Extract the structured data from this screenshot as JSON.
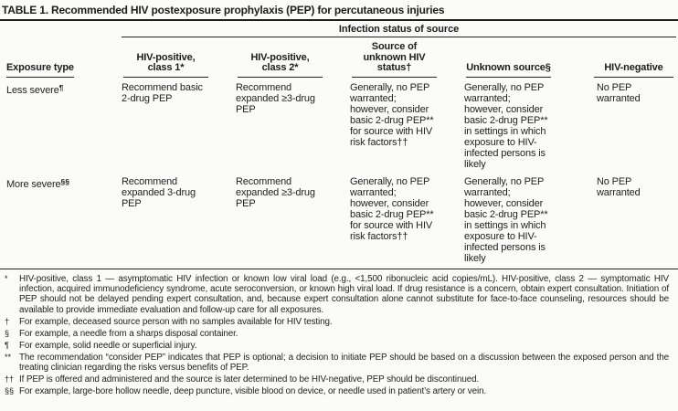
{
  "title": "TABLE 1. Recommended HIV postexposure prophylaxis (PEP) for percutaneous injuries",
  "table": {
    "spanner": "Infection status of source",
    "row_header": "Exposure type",
    "columns": [
      {
        "label": "HIV-positive,\nclass 1*"
      },
      {
        "label": "HIV-positive,\nclass 2*"
      },
      {
        "label": "Source of\nunknown HIV\nstatus†"
      },
      {
        "label": "Unknown source§"
      },
      {
        "label": "HIV-negative"
      }
    ],
    "rows": [
      {
        "label": "Less severe",
        "sup": "¶",
        "cells": [
          "Recommend basic\n2-drug PEP",
          "Recommend\nexpanded ≥3-drug\nPEP",
          "Generally, no PEP\nwarranted;\nhowever, consider\nbasic 2-drug PEP**\nfor source with HIV\nrisk factors††",
          "Generally, no PEP\nwarranted;\nhowever, consider\nbasic 2-drug PEP**\nin settings in which\nexposure to HIV-\ninfected persons is\nlikely",
          "No PEP warranted"
        ]
      },
      {
        "label": "More severe",
        "sup": "§§",
        "cells": [
          "Recommend\nexpanded 3-drug\nPEP",
          "Recommend\nexpanded ≥3-drug\nPEP",
          "Generally, no PEP\nwarranted;\nhowever, consider\nbasic 2-drug PEP**\nfor source with HIV\nrisk factors††",
          "Generally, no PEP\nwarranted;\nhowever, consider\nbasic 2-drug PEP**\nin settings in which\nexposure to HIV-\ninfected persons is\nlikely",
          "No PEP warranted"
        ]
      }
    ]
  },
  "footnotes": [
    {
      "symbol": "*",
      "text": "HIV-positive, class 1 — asymptomatic HIV infection or known low viral load (e.g., <1,500 ribonucleic acid copies/mL). HIV-positive, class 2 — symptomatic HIV infection, acquired immunodeficiency syndrome, acute seroconversion, or known high viral load. If drug resistance is a concern, obtain expert consultation. Initiation of PEP should not be delayed pending expert consultation, and, because expert consultation alone cannot substitute for face-to-face counseling, resources should be available to provide immediate evaluation and follow-up care for all exposures."
    },
    {
      "symbol": "†",
      "text": "For example, deceased source person with no samples available for HIV testing."
    },
    {
      "symbol": "§",
      "text": "For example, a needle from a sharps disposal container."
    },
    {
      "symbol": "¶",
      "text": "For example, solid needle or superficial injury."
    },
    {
      "symbol": "**",
      "text": "The recommendation “consider PEP” indicates that PEP is optional; a decision to initiate PEP should be based on a discussion between the exposed person and the treating clinician regarding the risks versus benefits of PEP."
    },
    {
      "symbol": "††",
      "text": "If PEP is offered and administered and the source is later determined to be HIV-negative, PEP should be discontinued."
    },
    {
      "symbol": "§§",
      "text": "For example, large-bore hollow needle, deep puncture, visible blood on device, or needle used in patient’s artery or vein."
    }
  ]
}
